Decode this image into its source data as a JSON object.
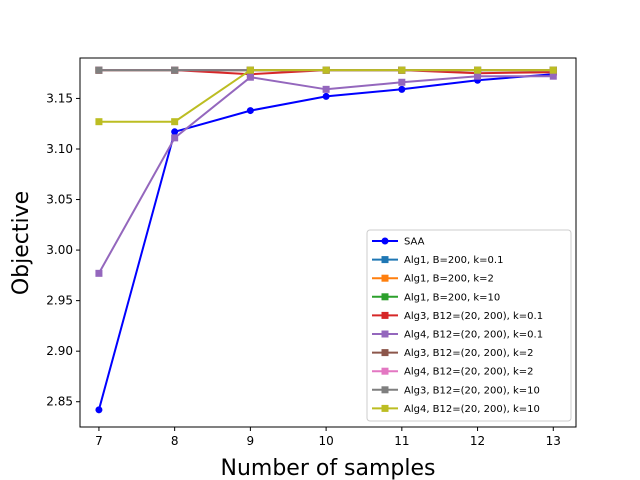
{
  "chart_data": {
    "type": "line",
    "title": "",
    "xlabel": "Number of samples",
    "ylabel": "Objective",
    "xlim": [
      6.75,
      13.3
    ],
    "ylim": [
      2.825,
      3.19
    ],
    "x_ticks": [
      "7",
      "8",
      "9",
      "10",
      "11",
      "12",
      "13"
    ],
    "y_ticks": [
      "2.85",
      "2.90",
      "2.95",
      "3.00",
      "3.05",
      "3.10",
      "3.15"
    ],
    "y_tick_values": [
      2.85,
      2.9,
      2.95,
      3.0,
      3.05,
      3.1,
      3.15
    ],
    "x": [
      7,
      8,
      9,
      10,
      11,
      12,
      13
    ],
    "grid": false,
    "legend_position": "lower-right",
    "series": [
      {
        "name": "SAA",
        "color": "#0000ff",
        "marker": "circle",
        "values": [
          2.842,
          3.117,
          3.138,
          3.152,
          3.159,
          3.168,
          3.174
        ]
      },
      {
        "name": "Alg1, B=200, k=0.1",
        "color": "#1f77b4",
        "marker": "square",
        "values": [
          3.178,
          3.178,
          3.178,
          3.178,
          3.178,
          3.178,
          3.178
        ]
      },
      {
        "name": "Alg1, B=200, k=2",
        "color": "#ff7f0e",
        "marker": "square",
        "values": [
          3.178,
          3.178,
          3.178,
          3.178,
          3.178,
          3.178,
          3.178
        ]
      },
      {
        "name": "Alg1, B=200, k=10",
        "color": "#2ca02c",
        "marker": "square",
        "values": [
          3.178,
          3.178,
          3.178,
          3.178,
          3.178,
          3.178,
          3.178
        ]
      },
      {
        "name": "Alg3, B12=(20, 200), k=0.1",
        "color": "#d62728",
        "marker": "square",
        "values": [
          3.178,
          3.178,
          3.174,
          3.178,
          3.178,
          3.175,
          3.176
        ]
      },
      {
        "name": "Alg4, B12=(20, 200), k=0.1",
        "color": "#9467bd",
        "marker": "square",
        "values": [
          2.977,
          3.111,
          3.171,
          3.159,
          3.166,
          3.172,
          3.172
        ]
      },
      {
        "name": "Alg3, B12=(20, 200), k=2",
        "color": "#8c564b",
        "marker": "square",
        "values": [
          3.178,
          3.178,
          3.178,
          3.178,
          3.178,
          3.178,
          3.178
        ]
      },
      {
        "name": "Alg4, B12=(20, 200), k=2",
        "color": "#e377c2",
        "marker": "square",
        "values": [
          3.178,
          3.178,
          3.178,
          3.178,
          3.178,
          3.178,
          3.178
        ]
      },
      {
        "name": "Alg3, B12=(20, 200), k=10",
        "color": "#7f7f7f",
        "marker": "square",
        "values": [
          3.178,
          3.178,
          3.178,
          3.178,
          3.178,
          3.178,
          3.178
        ]
      },
      {
        "name": "Alg4, B12=(20, 200), k=10",
        "color": "#bcbd22",
        "marker": "square",
        "values": [
          3.127,
          3.127,
          3.178,
          3.178,
          3.178,
          3.178,
          3.178
        ]
      }
    ]
  }
}
